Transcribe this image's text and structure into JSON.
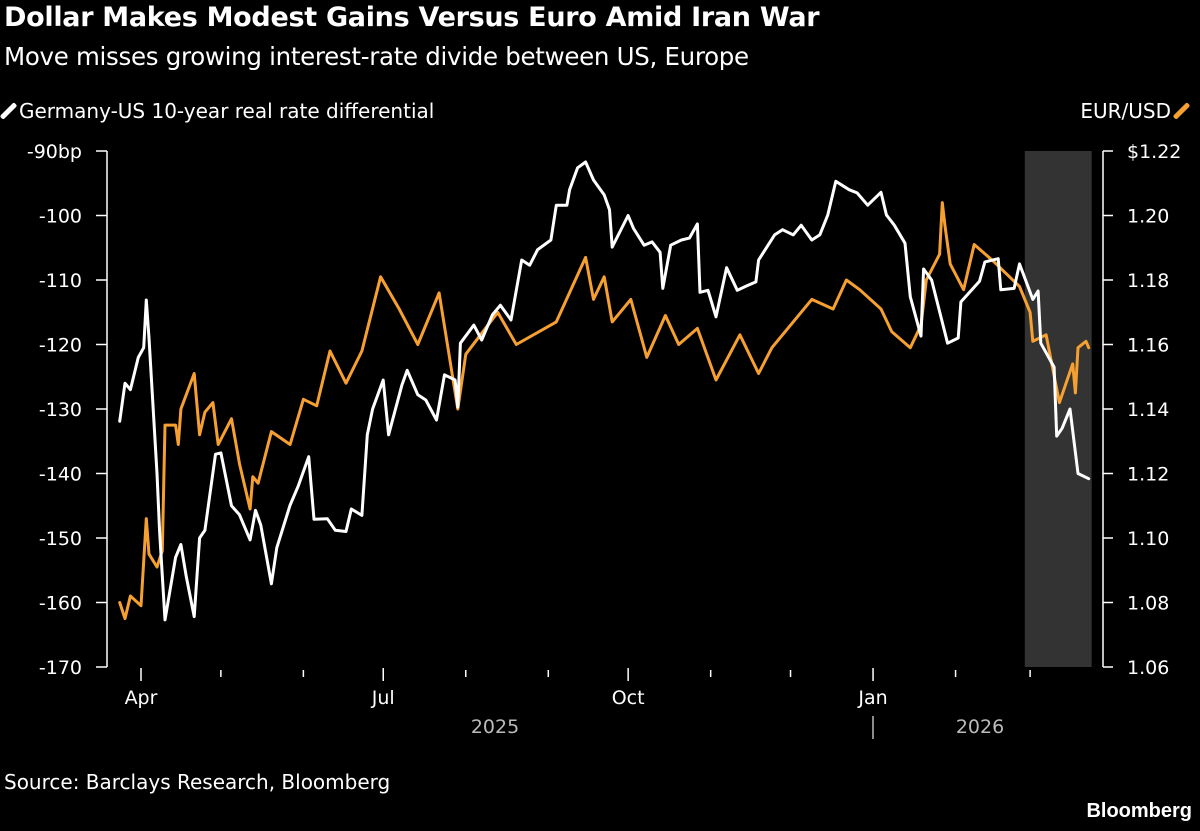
{
  "header": {
    "title": "Dollar Makes Modest Gains Versus Euro Amid Iran War",
    "subtitle": "Move misses growing interest-rate divide between US, Europe"
  },
  "footer": {
    "source": "Source: Barclays Research, Bloomberg",
    "brand": "Bloomberg"
  },
  "chart_data": {
    "type": "line",
    "title": "Dollar Makes Modest Gains Versus Euro Amid Iran War",
    "subtitle": "Move misses growing interest-rate divide between US, Europe",
    "legend_placement": "top",
    "grid": false,
    "x_axis": {
      "type": "date",
      "range": [
        "2025-03-20",
        "2026-03-26"
      ],
      "tick_labels": [
        "Apr",
        "Jul",
        "Oct",
        "Jan"
      ],
      "major_ticks": [
        "2025-04-01",
        "2025-07-01",
        "2025-10-01",
        "2026-01-01"
      ],
      "minor_ticks": [
        "2025-05-01",
        "2025-06-01",
        "2025-08-01",
        "2025-09-01",
        "2025-11-01",
        "2025-12-01",
        "2026-02-01",
        "2026-03-01"
      ],
      "year_labels": [
        "2025",
        "2026"
      ]
    },
    "left_axis": {
      "range": [
        -170,
        -90
      ],
      "ticks": [
        -90,
        -100,
        -110,
        -120,
        -130,
        -140,
        -150,
        -160,
        -170
      ],
      "tick_labels": [
        "-90bp",
        "-100",
        "-110",
        "-120",
        "-130",
        "-140",
        "-150",
        "-160",
        "-170"
      ]
    },
    "right_axis": {
      "range": [
        1.06,
        1.22
      ],
      "ticks": [
        1.22,
        1.2,
        1.18,
        1.16,
        1.14,
        1.12,
        1.1,
        1.08,
        1.06
      ],
      "tick_labels": [
        "$1.22",
        "1.20",
        "1.18",
        "1.16",
        "1.14",
        "1.12",
        "1.10",
        "1.08",
        "1.06"
      ]
    },
    "shaded_period": {
      "start": "2026-02-27",
      "end": "2026-03-23",
      "color": "#333333"
    },
    "series": [
      {
        "name": "Germany-US 10-year real rate differential",
        "axis": "left",
        "color": "#ffffff",
        "points": [
          [
            "2025-03-24",
            -131.9
          ],
          [
            "2025-03-26",
            -126
          ],
          [
            "2025-03-28",
            -127
          ],
          [
            "2025-03-31",
            -122
          ],
          [
            "2025-04-02",
            -120.5
          ],
          [
            "2025-04-03",
            -113.1
          ],
          [
            "2025-04-04",
            -119
          ],
          [
            "2025-04-07",
            -140
          ],
          [
            "2025-04-08",
            -149
          ],
          [
            "2025-04-10",
            -162.7
          ],
          [
            "2025-04-14",
            -153
          ],
          [
            "2025-04-16",
            -151
          ],
          [
            "2025-04-18",
            -156
          ],
          [
            "2025-04-21",
            -162.2
          ],
          [
            "2025-04-23",
            -150
          ],
          [
            "2025-04-25",
            -148.8
          ],
          [
            "2025-04-29",
            -137
          ],
          [
            "2025-05-01",
            -136.8
          ],
          [
            "2025-05-05",
            -145
          ],
          [
            "2025-05-08",
            -146.4
          ],
          [
            "2025-05-12",
            -150.3
          ],
          [
            "2025-05-14",
            -145.7
          ],
          [
            "2025-05-16",
            -148
          ],
          [
            "2025-05-20",
            -157.1
          ],
          [
            "2025-05-22",
            -151.5
          ],
          [
            "2025-05-27",
            -144.9
          ],
          [
            "2025-05-30",
            -142
          ],
          [
            "2025-06-03",
            -137.4
          ],
          [
            "2025-06-05",
            -147.1
          ],
          [
            "2025-06-10",
            -147
          ],
          [
            "2025-06-13",
            -148.8
          ],
          [
            "2025-06-17",
            -149
          ],
          [
            "2025-06-19",
            -145.5
          ],
          [
            "2025-06-23",
            -146.5
          ],
          [
            "2025-06-25",
            -134
          ],
          [
            "2025-06-27",
            -130
          ],
          [
            "2025-07-01",
            -125.5
          ],
          [
            "2025-07-03",
            -134
          ],
          [
            "2025-07-08",
            -126.3
          ],
          [
            "2025-07-10",
            -124
          ],
          [
            "2025-07-14",
            -127.8
          ],
          [
            "2025-07-17",
            -128.6
          ],
          [
            "2025-07-21",
            -131.7
          ],
          [
            "2025-07-24",
            -124.7
          ],
          [
            "2025-07-28",
            -125.5
          ],
          [
            "2025-07-29",
            -129.7
          ],
          [
            "2025-07-30",
            -119.8
          ],
          [
            "2025-08-04",
            -117
          ],
          [
            "2025-08-07",
            -119.3
          ],
          [
            "2025-08-11",
            -115.4
          ],
          [
            "2025-08-14",
            -113.9
          ],
          [
            "2025-08-18",
            -116.2
          ],
          [
            "2025-08-22",
            -106.9
          ],
          [
            "2025-08-25",
            -107.7
          ],
          [
            "2025-08-28",
            -105.3
          ],
          [
            "2025-09-02",
            -103.8
          ],
          [
            "2025-09-04",
            -98.4
          ],
          [
            "2025-09-08",
            -98.4
          ],
          [
            "2025-09-09",
            -96
          ],
          [
            "2025-09-12",
            -92.6
          ],
          [
            "2025-09-15",
            -91.7
          ],
          [
            "2025-09-18",
            -94.5
          ],
          [
            "2025-09-22",
            -96.8
          ],
          [
            "2025-09-24",
            -99.1
          ],
          [
            "2025-09-25",
            -104.9
          ],
          [
            "2025-10-01",
            -100
          ],
          [
            "2025-10-03",
            -102
          ],
          [
            "2025-10-07",
            -104.6
          ],
          [
            "2025-10-10",
            -104.1
          ],
          [
            "2025-10-13",
            -105.7
          ],
          [
            "2025-10-14",
            -111.3
          ],
          [
            "2025-10-17",
            -104.6
          ],
          [
            "2025-10-21",
            -103.8
          ],
          [
            "2025-10-24",
            -103.5
          ],
          [
            "2025-10-27",
            -101.3
          ],
          [
            "2025-10-28",
            -111.9
          ],
          [
            "2025-10-31",
            -111.6
          ],
          [
            "2025-11-03",
            -115.7
          ],
          [
            "2025-11-07",
            -108.1
          ],
          [
            "2025-11-11",
            -111.6
          ],
          [
            "2025-11-14",
            -111
          ],
          [
            "2025-11-18",
            -110.3
          ],
          [
            "2025-11-19",
            -106.9
          ],
          [
            "2025-11-25",
            -103
          ],
          [
            "2025-11-28",
            -102.2
          ],
          [
            "2025-12-02",
            -103
          ],
          [
            "2025-12-05",
            -101.5
          ],
          [
            "2025-12-09",
            -103.8
          ],
          [
            "2025-12-12",
            -103
          ],
          [
            "2025-12-15",
            -99.9
          ],
          [
            "2025-12-18",
            -94.7
          ],
          [
            "2025-12-23",
            -96
          ],
          [
            "2025-12-26",
            -96.5
          ],
          [
            "2025-12-30",
            -98.4
          ],
          [
            "2026-01-04",
            -96.4
          ],
          [
            "2026-01-06",
            -99.9
          ],
          [
            "2026-01-09",
            -101.5
          ],
          [
            "2026-01-13",
            -104.3
          ],
          [
            "2026-01-15",
            -112.6
          ],
          [
            "2026-01-19",
            -118.7
          ],
          [
            "2026-01-20",
            -108.3
          ],
          [
            "2026-01-23",
            -110
          ],
          [
            "2026-01-29",
            -119.8
          ],
          [
            "2026-02-02",
            -119
          ],
          [
            "2026-02-03",
            -113.4
          ],
          [
            "2026-02-10",
            -110.2
          ],
          [
            "2026-02-12",
            -107.2
          ],
          [
            "2026-02-17",
            -106.7
          ],
          [
            "2026-02-18",
            -111.5
          ],
          [
            "2026-02-23",
            -111.3
          ],
          [
            "2026-02-25",
            -107.5
          ],
          [
            "2026-03-02",
            -113
          ],
          [
            "2026-03-04",
            -111.7
          ],
          [
            "2026-03-05",
            -119.8
          ],
          [
            "2026-03-10",
            -123.5
          ],
          [
            "2026-03-11",
            -134.2
          ],
          [
            "2026-03-13",
            -133
          ],
          [
            "2026-03-16",
            -130
          ],
          [
            "2026-03-19",
            -140
          ],
          [
            "2026-03-23",
            -140.8
          ]
        ]
      },
      {
        "name": "EUR/USD",
        "axis": "right",
        "color": "#f5a030",
        "points": [
          [
            "2025-03-24",
            1.08
          ],
          [
            "2025-03-26",
            1.075
          ],
          [
            "2025-03-28",
            1.082
          ],
          [
            "2025-04-01",
            1.079
          ],
          [
            "2025-04-03",
            1.106
          ],
          [
            "2025-04-04",
            1.095
          ],
          [
            "2025-04-07",
            1.091
          ],
          [
            "2025-04-09",
            1.096
          ],
          [
            "2025-04-10",
            1.135
          ],
          [
            "2025-04-14",
            1.135
          ],
          [
            "2025-04-15",
            1.129
          ],
          [
            "2025-04-16",
            1.14
          ],
          [
            "2025-04-21",
            1.151
          ],
          [
            "2025-04-23",
            1.132
          ],
          [
            "2025-04-25",
            1.139
          ],
          [
            "2025-04-28",
            1.142
          ],
          [
            "2025-04-30",
            1.129
          ],
          [
            "2025-05-05",
            1.137
          ],
          [
            "2025-05-08",
            1.123
          ],
          [
            "2025-05-12",
            1.109
          ],
          [
            "2025-05-13",
            1.119
          ],
          [
            "2025-05-15",
            1.117
          ],
          [
            "2025-05-20",
            1.133
          ],
          [
            "2025-05-27",
            1.129
          ],
          [
            "2025-06-01",
            1.143
          ],
          [
            "2025-06-06",
            1.141
          ],
          [
            "2025-06-11",
            1.158
          ],
          [
            "2025-06-17",
            1.148
          ],
          [
            "2025-06-23",
            1.158
          ],
          [
            "2025-06-30",
            1.181
          ],
          [
            "2025-07-07",
            1.171
          ],
          [
            "2025-07-14",
            1.16
          ],
          [
            "2025-07-22",
            1.176
          ],
          [
            "2025-07-29",
            1.14
          ],
          [
            "2025-08-01",
            1.157
          ],
          [
            "2025-08-13",
            1.17
          ],
          [
            "2025-08-20",
            1.16
          ],
          [
            "2025-09-04",
            1.167
          ],
          [
            "2025-09-15",
            1.187
          ],
          [
            "2025-09-18",
            1.174
          ],
          [
            "2025-09-22",
            1.181
          ],
          [
            "2025-09-25",
            1.167
          ],
          [
            "2025-10-02",
            1.174
          ],
          [
            "2025-10-08",
            1.156
          ],
          [
            "2025-10-15",
            1.169
          ],
          [
            "2025-10-20",
            1.16
          ],
          [
            "2025-10-27",
            1.165
          ],
          [
            "2025-11-03",
            1.149
          ],
          [
            "2025-11-12",
            1.163
          ],
          [
            "2025-11-19",
            1.151
          ],
          [
            "2025-11-24",
            1.159
          ],
          [
            "2025-12-09",
            1.174
          ],
          [
            "2025-12-17",
            1.171
          ],
          [
            "2025-12-22",
            1.18
          ],
          [
            "2025-12-27",
            1.177
          ],
          [
            "2026-01-04",
            1.171
          ],
          [
            "2026-01-08",
            1.164
          ],
          [
            "2026-01-15",
            1.159
          ],
          [
            "2026-01-19",
            1.166
          ],
          [
            "2026-01-21",
            1.18
          ],
          [
            "2026-01-26",
            1.188
          ],
          [
            "2026-01-27",
            1.204
          ],
          [
            "2026-01-28",
            1.197
          ],
          [
            "2026-01-30",
            1.185
          ],
          [
            "2026-02-04",
            1.177
          ],
          [
            "2026-02-08",
            1.191
          ],
          [
            "2026-02-15",
            1.186
          ],
          [
            "2026-02-25",
            1.178
          ],
          [
            "2026-03-01",
            1.17
          ],
          [
            "2026-03-02",
            1.161
          ],
          [
            "2026-03-07",
            1.163
          ],
          [
            "2026-03-12",
            1.142
          ],
          [
            "2026-03-17",
            1.154
          ],
          [
            "2026-03-18",
            1.145
          ],
          [
            "2026-03-19",
            1.159
          ],
          [
            "2026-03-22",
            1.161
          ],
          [
            "2026-03-23",
            1.159
          ]
        ]
      }
    ]
  }
}
